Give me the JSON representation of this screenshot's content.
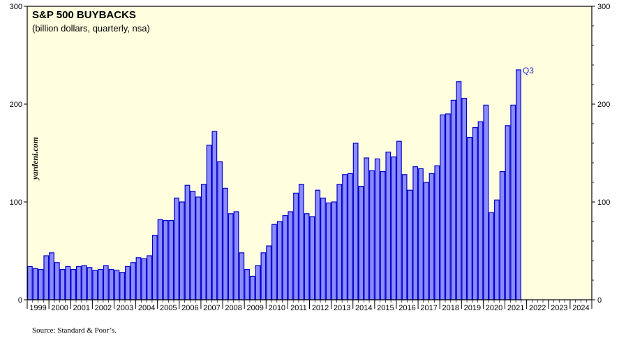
{
  "chart_data": {
    "type": "bar",
    "title": "S&P 500 BUYBACKS",
    "subtitle": "(billion dollars, quarterly, nsa)",
    "source": "Source: Standard & Poor’s.",
    "watermark": "yardeni.com",
    "annotation": "Q3",
    "ylim": [
      0,
      300
    ],
    "yticks": [
      "0",
      "100",
      "200",
      "300"
    ],
    "years": [
      "1999",
      "2000",
      "2001",
      "2002",
      "2003",
      "2004",
      "2005",
      "2006",
      "2007",
      "2008",
      "2009",
      "2010",
      "2011",
      "2012",
      "2013",
      "2014",
      "2015",
      "2016",
      "2017",
      "2018",
      "2019",
      "2020",
      "2021",
      "2022",
      "2023",
      "2024"
    ],
    "series": [
      {
        "values": [
          34,
          32,
          31,
          45,
          48,
          38,
          31,
          34,
          31,
          34,
          35,
          33,
          30,
          31,
          35,
          31,
          30,
          28,
          34,
          38,
          43,
          42,
          45,
          66,
          82,
          81,
          81,
          104,
          100,
          117,
          111,
          105,
          118,
          158,
          172,
          141,
          114,
          88,
          90,
          48,
          31,
          24,
          35,
          48,
          55,
          77,
          80,
          86,
          90,
          109,
          118,
          88,
          85,
          112,
          104,
          99,
          100,
          118,
          128,
          129,
          160,
          116,
          145,
          132,
          144,
          131,
          151,
          146,
          162,
          128,
          112,
          136,
          134,
          120,
          129,
          137,
          189,
          190,
          204,
          223,
          206,
          166,
          176,
          182,
          199,
          89,
          102,
          131,
          178,
          199,
          235
        ]
      }
    ],
    "colors": {
      "plot_bg": "#ffffe0",
      "bar_fill": "#8c8cff",
      "bar_stroke": "#0000cc",
      "annotation": "#1f1fd0"
    }
  }
}
